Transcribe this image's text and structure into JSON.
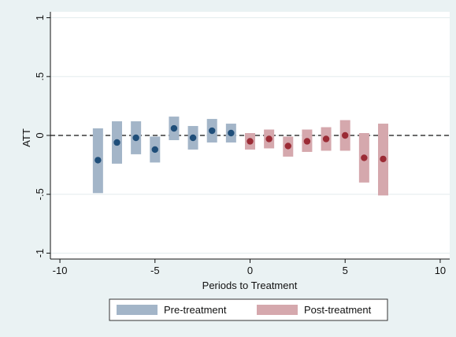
{
  "chart_data": {
    "type": "scatter",
    "title": "",
    "xlabel": "Periods to Treatment",
    "ylabel": "ATT",
    "xlim": [
      -10.5,
      10.5
    ],
    "ylim": [
      -1.05,
      1.05
    ],
    "x_ticks": [
      {
        "value": -10,
        "label": "-10"
      },
      {
        "value": -5,
        "label": "-5"
      },
      {
        "value": 0,
        "label": "0"
      },
      {
        "value": 5,
        "label": "5"
      },
      {
        "value": 10,
        "label": "10"
      }
    ],
    "y_ticks": [
      {
        "value": 1,
        "label": "1"
      },
      {
        "value": 0.5,
        "label": ".5"
      },
      {
        "value": 0,
        "label": "0"
      },
      {
        "value": -0.5,
        "label": "-.5"
      },
      {
        "value": -1,
        "label": "-1"
      }
    ],
    "grid": true,
    "reference_line": {
      "y": 0,
      "style": "dashed"
    },
    "legend_position": "bottom",
    "series": [
      {
        "name": "Pre-treatment",
        "bar_color": "#a3b5c8",
        "point_color": "#1f4e79",
        "points": [
          {
            "x": -8,
            "y": -0.21,
            "lo": -0.49,
            "hi": 0.06
          },
          {
            "x": -7,
            "y": -0.06,
            "lo": -0.24,
            "hi": 0.12
          },
          {
            "x": -6,
            "y": -0.02,
            "lo": -0.16,
            "hi": 0.12
          },
          {
            "x": -5,
            "y": -0.12,
            "lo": -0.23,
            "hi": -0.01
          },
          {
            "x": -4,
            "y": 0.06,
            "lo": -0.04,
            "hi": 0.16
          },
          {
            "x": -3,
            "y": -0.02,
            "lo": -0.12,
            "hi": 0.08
          },
          {
            "x": -2,
            "y": 0.04,
            "lo": -0.06,
            "hi": 0.14
          },
          {
            "x": -1,
            "y": 0.02,
            "lo": -0.06,
            "hi": 0.1
          }
        ]
      },
      {
        "name": "Post-treatment",
        "bar_color": "#d5a8ad",
        "point_color": "#9b2b35",
        "points": [
          {
            "x": 0,
            "y": -0.05,
            "lo": -0.12,
            "hi": 0.02
          },
          {
            "x": 1,
            "y": -0.03,
            "lo": -0.11,
            "hi": 0.05
          },
          {
            "x": 2,
            "y": -0.09,
            "lo": -0.18,
            "hi": -0.01
          },
          {
            "x": 3,
            "y": -0.05,
            "lo": -0.14,
            "hi": 0.05
          },
          {
            "x": 4,
            "y": -0.03,
            "lo": -0.13,
            "hi": 0.07
          },
          {
            "x": 5,
            "y": 0.0,
            "lo": -0.13,
            "hi": 0.13
          },
          {
            "x": 6,
            "y": -0.19,
            "lo": -0.4,
            "hi": 0.02
          },
          {
            "x": 7,
            "y": -0.2,
            "lo": -0.51,
            "hi": 0.1
          }
        ]
      }
    ]
  }
}
